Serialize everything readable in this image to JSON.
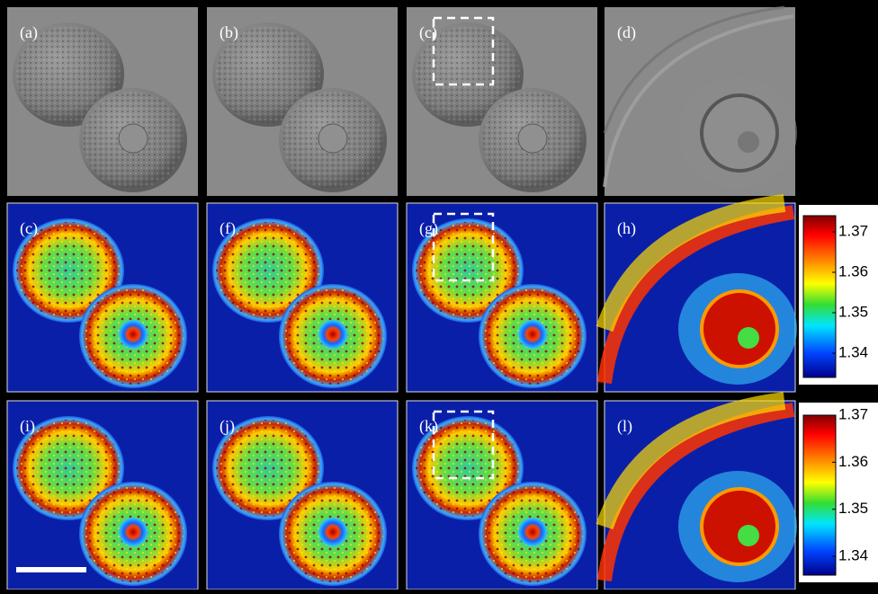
{
  "panels": [
    {
      "label": "(a)"
    },
    {
      "label": "(b)"
    },
    {
      "label": "(c)"
    },
    {
      "label": "(d)"
    },
    {
      "label": "(c)"
    },
    {
      "label": "(f)"
    },
    {
      "label": "(g)"
    },
    {
      "label": "(h)"
    },
    {
      "label": "(i)"
    },
    {
      "label": "(j)"
    },
    {
      "label": "(k)"
    },
    {
      "label": "(l)"
    }
  ],
  "colorbars": [
    {
      "lim": [
        1.334,
        1.374
      ],
      "ticks": [
        1.37,
        1.36,
        1.35,
        1.34
      ]
    },
    {
      "lim": [
        1.336,
        1.37
      ],
      "ticks": [
        1.37,
        1.36,
        1.35,
        1.34
      ]
    }
  ]
}
